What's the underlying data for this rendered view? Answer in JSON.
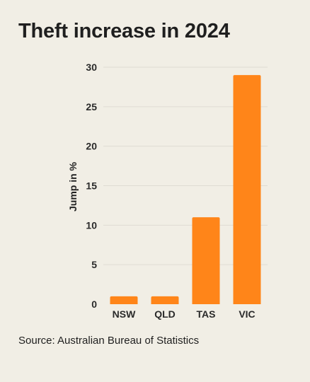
{
  "chart_data": {
    "type": "bar",
    "title": "Theft increase in 2024",
    "xlabel": "",
    "ylabel": "Jump in %",
    "categories": [
      "NSW",
      "QLD",
      "TAS",
      "VIC"
    ],
    "values": [
      1,
      1,
      11,
      29
    ],
    "ylim": [
      0,
      30
    ],
    "yticks": [
      0,
      5,
      10,
      15,
      20,
      25,
      30
    ],
    "grid": true,
    "legend": "none",
    "bar_color": "#ff8519",
    "grid_color": "#dfdcd3"
  },
  "source": "Source: Australian Bureau of Statistics"
}
